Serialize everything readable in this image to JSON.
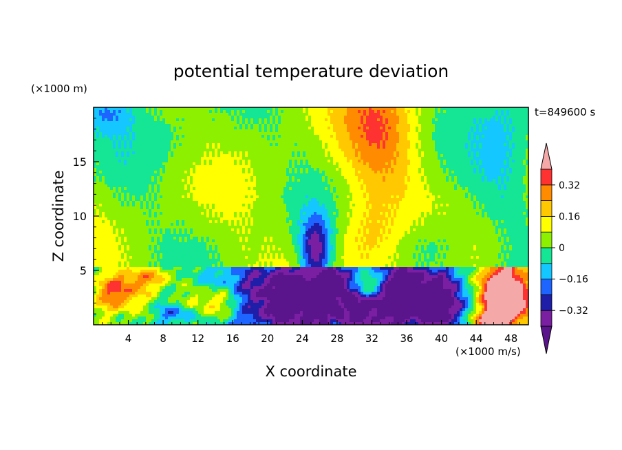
{
  "chart_data": {
    "type": "heatmap",
    "title": "potential temperature deviation",
    "xlabel": "X coordinate",
    "ylabel": "Z coordinate",
    "x_units": "(×1000 m/s)",
    "y_units": "(×1000 m)",
    "time_label": "t=849600 s",
    "xlim": [
      0,
      50
    ],
    "ylim": [
      0,
      20
    ],
    "x_ticks": [
      4,
      8,
      12,
      16,
      20,
      24,
      28,
      32,
      36,
      40,
      44,
      48
    ],
    "y_ticks": [
      5,
      10,
      15
    ],
    "colorbar": {
      "levels": [
        -0.4,
        -0.32,
        -0.24,
        -0.16,
        -0.08,
        0,
        0.08,
        0.16,
        0.24,
        0.32,
        0.4
      ],
      "colors": [
        "#7a1fa2",
        "#1e1ea8",
        "#1e64ff",
        "#14c8ff",
        "#14e696",
        "#8cf000",
        "#ffff00",
        "#ffc800",
        "#ff8c00",
        "#ff3232"
      ],
      "over_color": "#f5a8a8",
      "under_color": "#5a148c",
      "tick_labels": [
        "0.32",
        "0.16",
        "0",
        "−0.16",
        "−0.32"
      ],
      "tick_values": [
        0.32,
        0.16,
        0,
        -0.16,
        -0.32
      ]
    },
    "grid": false
  }
}
